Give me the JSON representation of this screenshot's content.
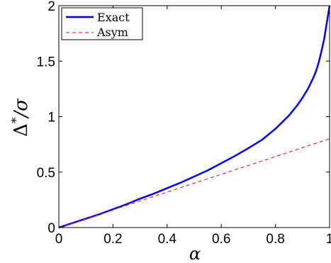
{
  "chart_data": {
    "type": "line",
    "xlabel": "α",
    "ylabel_main": "Δ",
    "ylabel_sup": "*",
    "ylabel_tail": "/σ",
    "xlim": [
      0,
      1
    ],
    "ylim": [
      0,
      2
    ],
    "grid": false,
    "legend_placement": "top-left",
    "x_ticks": [
      0,
      0.2,
      0.4,
      0.6,
      0.8,
      1
    ],
    "x_tick_labels": [
      "0",
      "0.2",
      "0.4",
      "0.6",
      "0.8",
      "1"
    ],
    "y_ticks": [
      0,
      0.5,
      1,
      1.5,
      2
    ],
    "y_tick_labels": [
      "0",
      "0.5",
      "1",
      "1.5",
      "2"
    ],
    "series": [
      {
        "name": "Exact",
        "color": "#0000ff",
        "line_style": "solid",
        "x": [
          0,
          0.05,
          0.1,
          0.15,
          0.2,
          0.25,
          0.3,
          0.35,
          0.4,
          0.45,
          0.5,
          0.55,
          0.6,
          0.65,
          0.7,
          0.75,
          0.8,
          0.85,
          0.88,
          0.9,
          0.92,
          0.94,
          0.95,
          0.96,
          0.97,
          0.98,
          0.99,
          1.0
        ],
        "values": [
          0,
          0.04,
          0.08,
          0.12,
          0.165,
          0.21,
          0.26,
          0.305,
          0.355,
          0.405,
          0.46,
          0.515,
          0.58,
          0.645,
          0.715,
          0.79,
          0.89,
          1.01,
          1.1,
          1.17,
          1.25,
          1.35,
          1.41,
          1.49,
          1.59,
          1.7,
          1.85,
          2.0
        ]
      },
      {
        "name": "Asym",
        "color": "#ff0000",
        "line_style": "dashed",
        "x": [
          0,
          1
        ],
        "values": [
          0,
          0.8
        ]
      }
    ]
  }
}
